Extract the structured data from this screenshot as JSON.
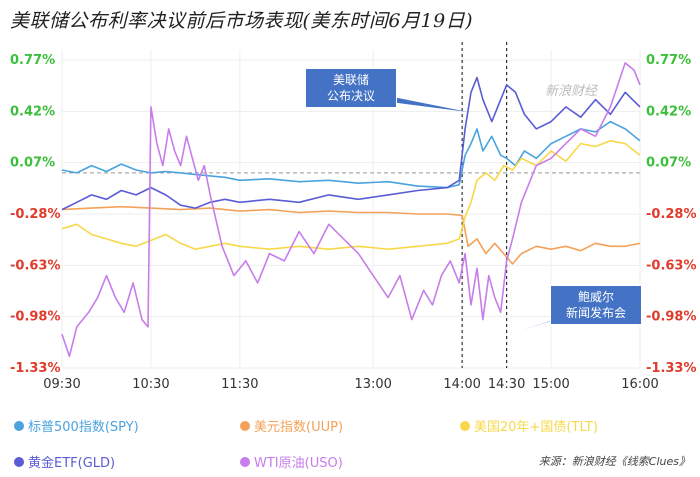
{
  "title": "美联储公布利率决议前后市场表现(美东时间6月19日)",
  "watermark": "新浪财经",
  "source": "来源：新浪财经《线索Clues》",
  "callouts": {
    "fomc": [
      "美联储",
      "公布决议"
    ],
    "powell": [
      "鲍威尔",
      "新闻发布会"
    ]
  },
  "legend": [
    {
      "label": "标普500指数(SPY)",
      "color": "#4aa3df"
    },
    {
      "label": "美元指数(UUP)",
      "color": "#f4a259"
    },
    {
      "label": "美国20年+国债(TLT)",
      "color": "#f7d84a"
    },
    {
      "label": "黄金ETF(GLD)",
      "color": "#5a5cd6"
    },
    {
      "label": "WTI原油(USO)",
      "color": "#c77dea"
    }
  ],
  "chart_data": {
    "type": "line",
    "title": "美联储公布利率决议前后市场表现(美东时间6月19日)",
    "y_ticks": [
      "0.77%",
      "0.42%",
      "0.07%",
      "-0.28%",
      "-0.63%",
      "-0.98%",
      "-1.33%"
    ],
    "y_values": [
      0.77,
      0.42,
      0.07,
      -0.28,
      -0.63,
      -0.98,
      -1.33
    ],
    "ylim": [
      -1.33,
      0.77
    ],
    "x_ticks": [
      "09:30",
      "10:30",
      "11:30",
      "13:00",
      "14:00",
      "14:30",
      "15:00",
      "16:00"
    ],
    "x_tick_minutes": [
      0,
      60,
      120,
      210,
      270,
      300,
      330,
      390
    ],
    "xlim": [
      0,
      390
    ],
    "events": [
      {
        "label": "美联储公布决议",
        "minute": 270
      },
      {
        "label": "鲍威尔新闻发布会",
        "minute": 300
      }
    ],
    "baseline": 0.0,
    "series": [
      {
        "name": "标普500指数(SPY)",
        "color": "#4aa3df",
        "points": [
          [
            0,
            0.02
          ],
          [
            10,
            0.0
          ],
          [
            20,
            0.05
          ],
          [
            30,
            0.01
          ],
          [
            40,
            0.06
          ],
          [
            50,
            0.02
          ],
          [
            60,
            0.0
          ],
          [
            70,
            0.01
          ],
          [
            80,
            0.0
          ],
          [
            90,
            -0.01
          ],
          [
            100,
            -0.02
          ],
          [
            110,
            -0.03
          ],
          [
            120,
            -0.05
          ],
          [
            140,
            -0.04
          ],
          [
            160,
            -0.06
          ],
          [
            180,
            -0.05
          ],
          [
            200,
            -0.07
          ],
          [
            220,
            -0.06
          ],
          [
            240,
            -0.09
          ],
          [
            260,
            -0.1
          ],
          [
            268,
            -0.08
          ],
          [
            272,
            0.12
          ],
          [
            276,
            0.2
          ],
          [
            280,
            0.3
          ],
          [
            284,
            0.15
          ],
          [
            290,
            0.25
          ],
          [
            296,
            0.12
          ],
          [
            300,
            0.1
          ],
          [
            306,
            0.05
          ],
          [
            312,
            0.15
          ],
          [
            320,
            0.1
          ],
          [
            330,
            0.2
          ],
          [
            340,
            0.25
          ],
          [
            350,
            0.3
          ],
          [
            360,
            0.28
          ],
          [
            370,
            0.35
          ],
          [
            380,
            0.3
          ],
          [
            390,
            0.22
          ]
        ]
      },
      {
        "name": "美元指数(UUP)",
        "color": "#f4a259",
        "points": [
          [
            0,
            -0.25
          ],
          [
            20,
            -0.24
          ],
          [
            40,
            -0.23
          ],
          [
            60,
            -0.24
          ],
          [
            80,
            -0.25
          ],
          [
            100,
            -0.24
          ],
          [
            120,
            -0.26
          ],
          [
            140,
            -0.25
          ],
          [
            160,
            -0.27
          ],
          [
            180,
            -0.26
          ],
          [
            200,
            -0.27
          ],
          [
            220,
            -0.27
          ],
          [
            240,
            -0.28
          ],
          [
            260,
            -0.28
          ],
          [
            270,
            -0.29
          ],
          [
            274,
            -0.5
          ],
          [
            280,
            -0.45
          ],
          [
            286,
            -0.55
          ],
          [
            292,
            -0.48
          ],
          [
            298,
            -0.55
          ],
          [
            304,
            -0.62
          ],
          [
            310,
            -0.55
          ],
          [
            320,
            -0.5
          ],
          [
            330,
            -0.52
          ],
          [
            340,
            -0.5
          ],
          [
            350,
            -0.53
          ],
          [
            360,
            -0.48
          ],
          [
            370,
            -0.5
          ],
          [
            380,
            -0.5
          ],
          [
            390,
            -0.48
          ]
        ]
      },
      {
        "name": "美国20年+国债(TLT)",
        "color": "#f7d84a",
        "points": [
          [
            0,
            -0.38
          ],
          [
            10,
            -0.35
          ],
          [
            20,
            -0.42
          ],
          [
            30,
            -0.45
          ],
          [
            40,
            -0.48
          ],
          [
            50,
            -0.5
          ],
          [
            60,
            -0.46
          ],
          [
            70,
            -0.42
          ],
          [
            80,
            -0.48
          ],
          [
            90,
            -0.52
          ],
          [
            100,
            -0.5
          ],
          [
            110,
            -0.48
          ],
          [
            120,
            -0.5
          ],
          [
            140,
            -0.52
          ],
          [
            160,
            -0.5
          ],
          [
            180,
            -0.52
          ],
          [
            200,
            -0.5
          ],
          [
            220,
            -0.52
          ],
          [
            240,
            -0.5
          ],
          [
            260,
            -0.48
          ],
          [
            268,
            -0.45
          ],
          [
            272,
            -0.3
          ],
          [
            276,
            -0.2
          ],
          [
            280,
            -0.05
          ],
          [
            286,
            0.0
          ],
          [
            292,
            -0.05
          ],
          [
            298,
            0.05
          ],
          [
            304,
            0.02
          ],
          [
            310,
            0.1
          ],
          [
            320,
            0.05
          ],
          [
            330,
            0.15
          ],
          [
            340,
            0.08
          ],
          [
            350,
            0.2
          ],
          [
            360,
            0.18
          ],
          [
            370,
            0.22
          ],
          [
            380,
            0.2
          ],
          [
            390,
            0.12
          ]
        ]
      },
      {
        "name": "黄金ETF(GLD)",
        "color": "#5a5cd6",
        "points": [
          [
            0,
            -0.25
          ],
          [
            10,
            -0.2
          ],
          [
            20,
            -0.15
          ],
          [
            30,
            -0.18
          ],
          [
            40,
            -0.12
          ],
          [
            50,
            -0.15
          ],
          [
            60,
            -0.1
          ],
          [
            70,
            -0.15
          ],
          [
            80,
            -0.22
          ],
          [
            90,
            -0.24
          ],
          [
            100,
            -0.2
          ],
          [
            110,
            -0.18
          ],
          [
            120,
            -0.2
          ],
          [
            140,
            -0.18
          ],
          [
            160,
            -0.2
          ],
          [
            180,
            -0.15
          ],
          [
            200,
            -0.18
          ],
          [
            220,
            -0.15
          ],
          [
            240,
            -0.12
          ],
          [
            260,
            -0.1
          ],
          [
            268,
            -0.05
          ],
          [
            272,
            0.3
          ],
          [
            276,
            0.55
          ],
          [
            280,
            0.65
          ],
          [
            284,
            0.5
          ],
          [
            290,
            0.35
          ],
          [
            296,
            0.5
          ],
          [
            300,
            0.6
          ],
          [
            306,
            0.55
          ],
          [
            312,
            0.4
          ],
          [
            320,
            0.3
          ],
          [
            330,
            0.35
          ],
          [
            340,
            0.45
          ],
          [
            350,
            0.38
          ],
          [
            360,
            0.5
          ],
          [
            370,
            0.4
          ],
          [
            380,
            0.55
          ],
          [
            390,
            0.45
          ]
        ]
      },
      {
        "name": "WTI原油(USO)",
        "color": "#c77dea",
        "points": [
          [
            0,
            -1.1
          ],
          [
            5,
            -1.25
          ],
          [
            10,
            -1.05
          ],
          [
            18,
            -0.95
          ],
          [
            24,
            -0.85
          ],
          [
            30,
            -0.7
          ],
          [
            36,
            -0.85
          ],
          [
            42,
            -0.95
          ],
          [
            48,
            -0.75
          ],
          [
            54,
            -1.0
          ],
          [
            58,
            -1.05
          ],
          [
            60,
            0.45
          ],
          [
            64,
            0.2
          ],
          [
            68,
            0.05
          ],
          [
            72,
            0.3
          ],
          [
            76,
            0.15
          ],
          [
            80,
            0.05
          ],
          [
            84,
            0.25
          ],
          [
            88,
            0.1
          ],
          [
            92,
            -0.05
          ],
          [
            96,
            0.05
          ],
          [
            100,
            -0.15
          ],
          [
            108,
            -0.5
          ],
          [
            116,
            -0.7
          ],
          [
            124,
            -0.6
          ],
          [
            132,
            -0.75
          ],
          [
            140,
            -0.55
          ],
          [
            150,
            -0.6
          ],
          [
            160,
            -0.4
          ],
          [
            170,
            -0.55
          ],
          [
            180,
            -0.35
          ],
          [
            190,
            -0.45
          ],
          [
            200,
            -0.55
          ],
          [
            210,
            -0.7
          ],
          [
            220,
            -0.85
          ],
          [
            228,
            -0.7
          ],
          [
            236,
            -1.0
          ],
          [
            244,
            -0.8
          ],
          [
            250,
            -0.9
          ],
          [
            256,
            -0.7
          ],
          [
            262,
            -0.6
          ],
          [
            268,
            -0.75
          ],
          [
            272,
            -0.55
          ],
          [
            276,
            -0.9
          ],
          [
            280,
            -0.65
          ],
          [
            284,
            -1.0
          ],
          [
            288,
            -0.7
          ],
          [
            292,
            -0.85
          ],
          [
            296,
            -0.95
          ],
          [
            300,
            -0.6
          ],
          [
            304,
            -0.45
          ],
          [
            310,
            -0.2
          ],
          [
            320,
            0.05
          ],
          [
            330,
            0.1
          ],
          [
            340,
            0.2
          ],
          [
            350,
            0.3
          ],
          [
            360,
            0.25
          ],
          [
            370,
            0.45
          ],
          [
            375,
            0.6
          ],
          [
            380,
            0.75
          ],
          [
            386,
            0.7
          ],
          [
            390,
            0.6
          ]
        ]
      }
    ]
  }
}
